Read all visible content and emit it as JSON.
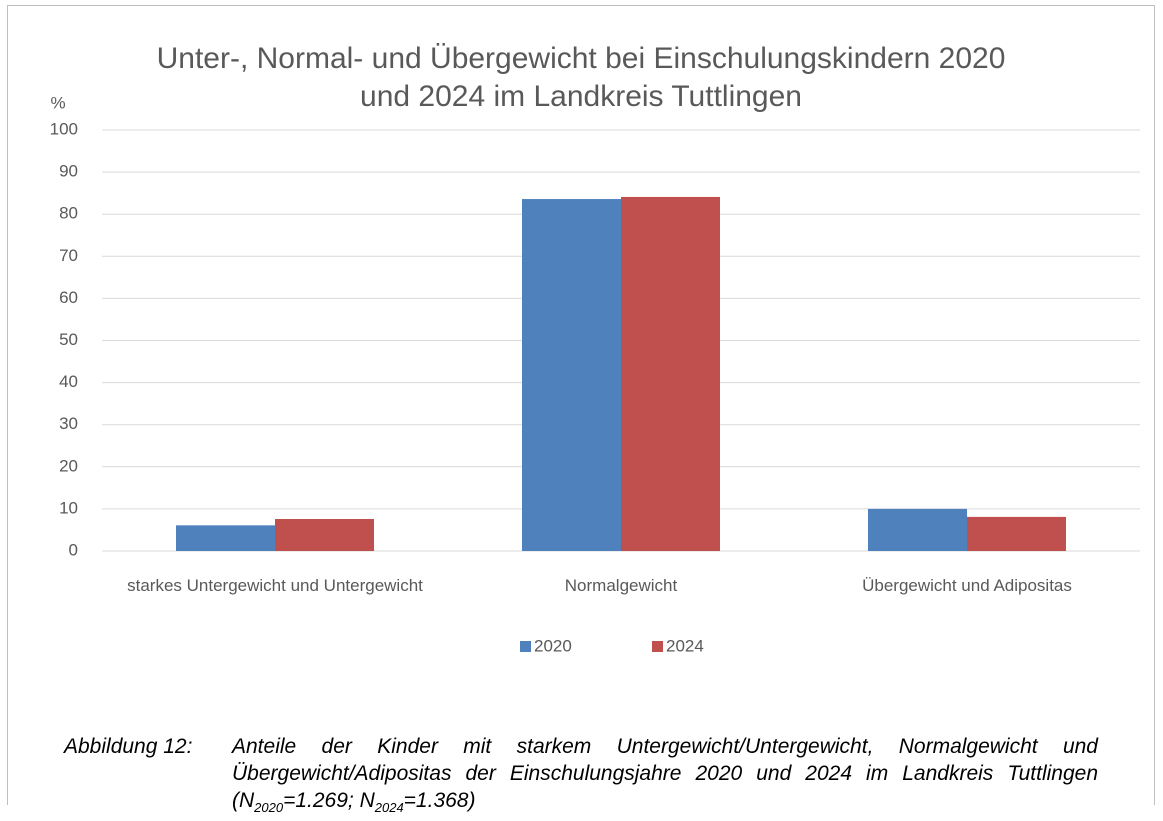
{
  "chart_data": {
    "type": "bar",
    "title": "Unter-, Normal- und Übergewicht bei Einschulungskindern 2020 und 2024 im Landkreis Tuttlingen",
    "ylabel": "%",
    "categories": [
      "starkes Untergewicht und Untergewicht",
      "Normalgewicht",
      "Übergewicht und Adipositas"
    ],
    "series": [
      {
        "name": "2020",
        "color": "#4f81bd",
        "values": [
          6.1,
          83.6,
          10.0
        ]
      },
      {
        "name": "2024",
        "color": "#c0504d",
        "values": [
          7.6,
          84.1,
          8.1
        ]
      }
    ],
    "ylim": [
      0,
      100
    ],
    "yticks": [
      0,
      10,
      20,
      30,
      40,
      50,
      60,
      70,
      80,
      90,
      100
    ],
    "grid": true,
    "legend": "bottom"
  },
  "caption": {
    "label": "Abbildung 12:",
    "parts": [
      "Anteile der Kinder mit starkem Untergewicht/Untergewicht, Normalgewicht und Übergewicht/Adipositas der Einschulungsjahre 2020 und 2024 im Landkreis Tuttlingen (N",
      "2020",
      "=1.269; N",
      "2024",
      "=1.368)"
    ]
  }
}
